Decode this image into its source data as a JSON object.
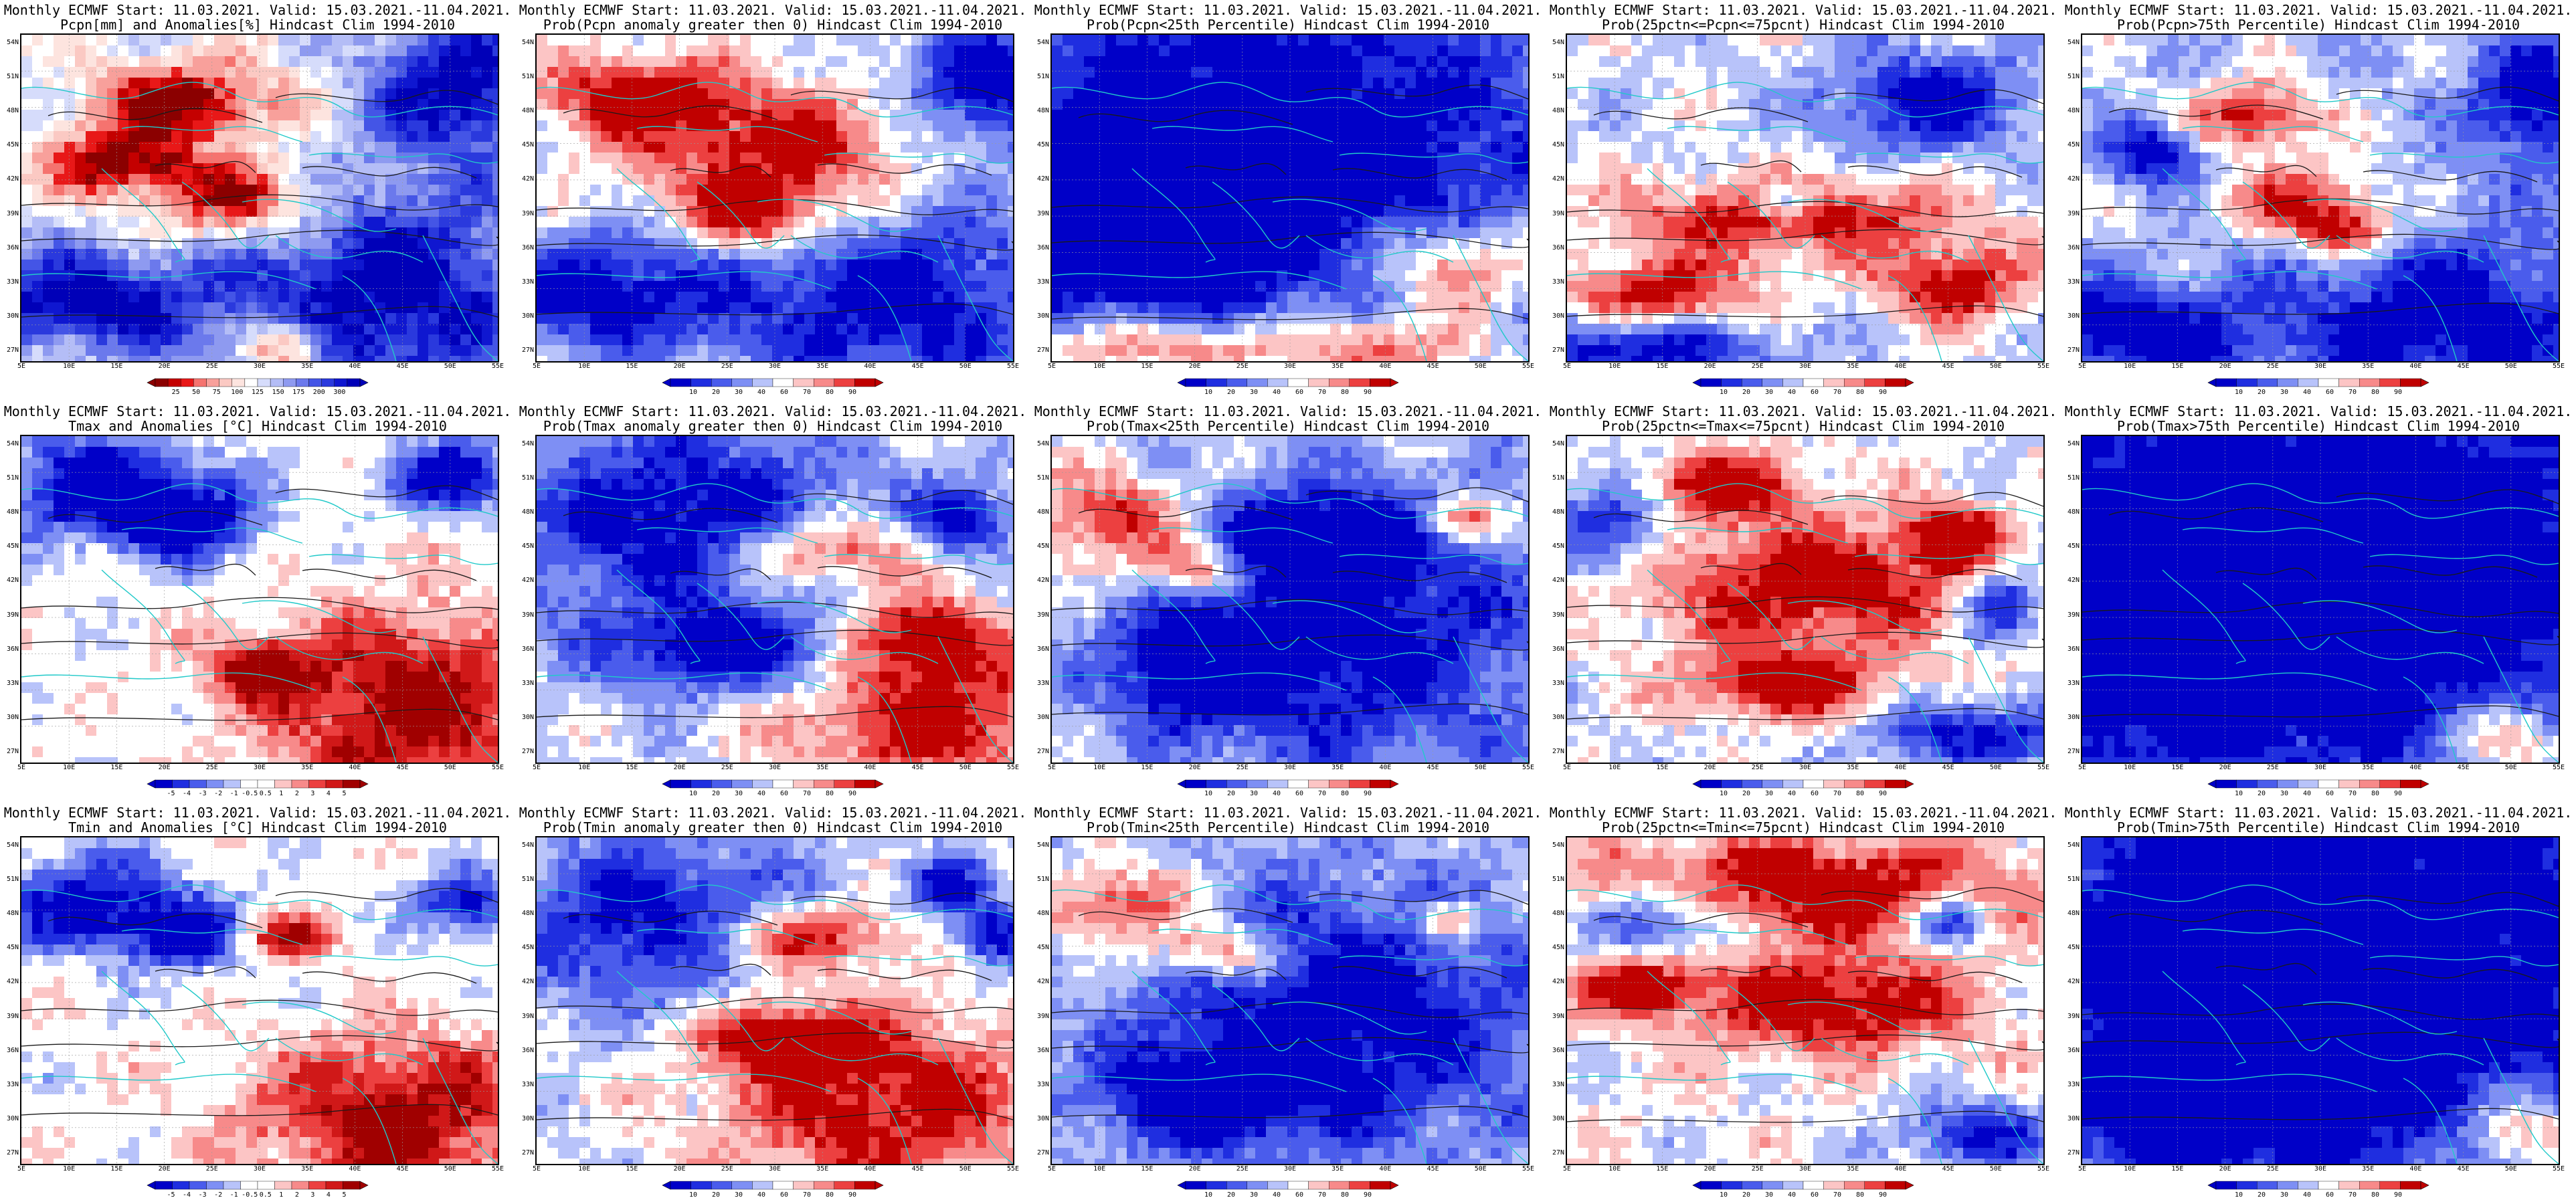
{
  "figure": {
    "lat_labels": [
      "54N",
      "51N",
      "48N",
      "45N",
      "42N",
      "39N",
      "36N",
      "33N",
      "30N",
      "27N"
    ],
    "lon_labels": [
      "5E",
      "10E",
      "15E",
      "20E",
      "25E",
      "30E",
      "35E",
      "40E",
      "45E",
      "50E",
      "55E"
    ],
    "colors": {
      "anom_precip": [
        "#8b0000",
        "#c40000",
        "#e81818",
        "#f5736f",
        "#f8a09b",
        "#fbc9c3",
        "#fde4df",
        "#ffffff",
        "#d6dcfb",
        "#b4bdf6",
        "#8e9af0",
        "#6b79ec",
        "#4455e6",
        "#2a39dd",
        "#0f17d0",
        "#0000b8"
      ],
      "prob": [
        "#0000c8",
        "#1f2ee0",
        "#4a5cec",
        "#7e8ff4",
        "#b8c3fa",
        "#ffffff",
        "#fcc5c5",
        "#f78a8a",
        "#ec4040",
        "#c00000"
      ],
      "anom_temp": [
        "#0000c8",
        "#1f2ee0",
        "#4a5cec",
        "#7e8ff4",
        "#b8c3fa",
        "#ffffff",
        "#ffffff",
        "#fcc5c5",
        "#f78a8a",
        "#ec4040",
        "#d01818",
        "#a00000"
      ],
      "contour": "#1a1a1a",
      "coast": "#21c9c9"
    }
  },
  "panels": [
    {
      "line1": "Monthly ECMWF Start: 11.03.2021. Valid: 15.03.2021.-11.04.2021.",
      "line2": "Pcpn[mm] and Anomalies[%] Hindcast Clim 1994-2010",
      "scale": "anom_precip",
      "cbar_labels": [
        "25",
        "50",
        "75",
        "100",
        "125",
        "150",
        "175",
        "200",
        "300"
      ],
      "hot": [
        [
          0.45,
          0.5,
          0.18,
          0.12
        ],
        [
          0.55,
          0.95,
          0.08,
          0.1
        ],
        [
          0.35,
          0.2,
          0.2,
          0.12
        ],
        [
          0.2,
          0.38,
          0.15,
          0.1
        ]
      ],
      "cold": [
        [
          0.75,
          0.78,
          0.35,
          0.35
        ],
        [
          0.12,
          0.8,
          0.25,
          0.15
        ],
        [
          0.92,
          0.15,
          0.2,
          0.2
        ]
      ],
      "bias": 0
    },
    {
      "line1": "Monthly ECMWF Start: 11.03.2021. Valid: 15.03.2021.-11.04.2021.",
      "line2": "Prob(Pcpn anomaly greater then 0) Hindcast Clim 1994-2010",
      "scale": "prob",
      "cbar_labels": [
        "10",
        "20",
        "30",
        "40",
        "60",
        "70",
        "80",
        "90"
      ],
      "hot": [
        [
          0.5,
          0.35,
          0.3,
          0.2
        ],
        [
          0.2,
          0.18,
          0.18,
          0.12
        ],
        [
          0.45,
          0.55,
          0.15,
          0.1
        ]
      ],
      "cold": [
        [
          0.75,
          0.8,
          0.35,
          0.3
        ],
        [
          0.15,
          0.78,
          0.25,
          0.18
        ],
        [
          0.95,
          0.15,
          0.2,
          0.2
        ]
      ],
      "bias": 0
    },
    {
      "line1": "Monthly ECMWF Start: 11.03.2021. Valid: 15.03.2021.-11.04.2021.",
      "line2": "Prob(Pcpn<25th Percentile) Hindcast Clim 1994-2010",
      "scale": "prob",
      "cbar_labels": [
        "10",
        "20",
        "30",
        "40",
        "60",
        "70",
        "80",
        "90"
      ],
      "hot": [
        [
          0.2,
          0.95,
          0.3,
          0.1
        ],
        [
          0.7,
          0.95,
          0.25,
          0.1
        ],
        [
          0.85,
          0.7,
          0.2,
          0.15
        ]
      ],
      "cold": [
        [
          0.4,
          0.35,
          0.5,
          0.4
        ],
        [
          0.2,
          0.6,
          0.25,
          0.2
        ]
      ],
      "bias": -0.5
    },
    {
      "line1": "Monthly ECMWF Start: 11.03.2021. Valid: 15.03.2021.-11.04.2021.",
      "line2": "Prob(25pctn<=Pcpn<=75pcnt) Hindcast Clim 1994-2010",
      "scale": "prob",
      "cbar_labels": [
        "10",
        "20",
        "30",
        "40",
        "60",
        "70",
        "80",
        "90"
      ],
      "hot": [
        [
          0.45,
          0.55,
          0.35,
          0.12
        ],
        [
          0.2,
          0.78,
          0.2,
          0.1
        ],
        [
          0.8,
          0.75,
          0.15,
          0.12
        ]
      ],
      "cold": [
        [
          0.15,
          0.95,
          0.3,
          0.1
        ],
        [
          0.75,
          0.2,
          0.2,
          0.15
        ],
        [
          0.45,
          0.5,
          0.06,
          0.06
        ]
      ],
      "bias": 0
    },
    {
      "line1": "Monthly ECMWF Start: 11.03.2021. Valid: 15.03.2021.-11.04.2021.",
      "line2": "Prob(Pcpn>75th Percentile) Hindcast Clim 1994-2010",
      "scale": "prob",
      "cbar_labels": [
        "10",
        "20",
        "30",
        "40",
        "60",
        "70",
        "80",
        "90"
      ],
      "hot": [
        [
          0.45,
          0.5,
          0.15,
          0.1
        ],
        [
          0.35,
          0.25,
          0.15,
          0.1
        ],
        [
          0.55,
          0.6,
          0.1,
          0.08
        ]
      ],
      "cold": [
        [
          0.75,
          0.85,
          0.35,
          0.25
        ],
        [
          0.1,
          0.9,
          0.25,
          0.15
        ],
        [
          0.95,
          0.2,
          0.15,
          0.2
        ],
        [
          0.15,
          0.35,
          0.1,
          0.1
        ]
      ],
      "bias": -0.1
    },
    {
      "line1": "Monthly ECMWF Start: 11.03.2021. Valid: 15.03.2021.-11.04.2021.",
      "line2": "Tmax and Anomalies [°C] Hindcast Clim 1994-2010",
      "scale": "anom_temp",
      "cbar_labels": [
        "-5",
        "-4",
        "-3",
        "-2",
        "-1",
        "-0.5",
        "0.5",
        "1",
        "2",
        "3",
        "4",
        "5"
      ],
      "hot": [
        [
          0.8,
          0.82,
          0.3,
          0.3
        ],
        [
          0.5,
          0.7,
          0.1,
          0.08
        ]
      ],
      "cold": [
        [
          0.15,
          0.15,
          0.22,
          0.18
        ],
        [
          0.35,
          0.25,
          0.15,
          0.12
        ],
        [
          0.9,
          0.12,
          0.15,
          0.12
        ]
      ],
      "bias": 0
    },
    {
      "line1": "Monthly ECMWF Start: 11.03.2021. Valid: 15.03.2021.-11.04.2021.",
      "line2": "Prob(Tmax anomaly greater then 0) Hindcast Clim 1994-2010",
      "scale": "prob",
      "cbar_labels": [
        "10",
        "20",
        "30",
        "40",
        "60",
        "70",
        "80",
        "90"
      ],
      "hot": [
        [
          0.82,
          0.85,
          0.3,
          0.25
        ],
        [
          0.6,
          0.35,
          0.2,
          0.1
        ],
        [
          0.8,
          0.6,
          0.15,
          0.12
        ]
      ],
      "cold": [
        [
          0.3,
          0.25,
          0.35,
          0.3
        ],
        [
          0.4,
          0.65,
          0.25,
          0.12
        ],
        [
          0.88,
          0.25,
          0.1,
          0.1
        ]
      ],
      "bias": -0.05
    },
    {
      "line1": "Monthly ECMWF Start: 11.03.2021. Valid: 15.03.2021.-11.04.2021.",
      "line2": "Prob(Tmax<25th Percentile) Hindcast Clim 1994-2010",
      "scale": "prob",
      "cbar_labels": [
        "10",
        "20",
        "30",
        "40",
        "60",
        "70",
        "80",
        "90"
      ],
      "hot": [
        [
          0.12,
          0.25,
          0.18,
          0.15
        ],
        [
          0.85,
          0.25,
          0.08,
          0.06
        ],
        [
          0.3,
          0.4,
          0.1,
          0.08
        ]
      ],
      "cold": [
        [
          0.6,
          0.6,
          0.4,
          0.4
        ],
        [
          0.3,
          0.7,
          0.15,
          0.15
        ],
        [
          0.55,
          0.3,
          0.2,
          0.12
        ]
      ],
      "bias": -0.1
    },
    {
      "line1": "Monthly ECMWF Start: 11.03.2021. Valid: 15.03.2021.-11.04.2021.",
      "line2": "Prob(25pctn<=Tmax<=75pcnt) Hindcast Clim 1994-2010",
      "scale": "prob",
      "cbar_labels": [
        "10",
        "20",
        "30",
        "40",
        "60",
        "70",
        "80",
        "90"
      ],
      "hot": [
        [
          0.5,
          0.45,
          0.35,
          0.2
        ],
        [
          0.3,
          0.15,
          0.2,
          0.1
        ],
        [
          0.8,
          0.3,
          0.1,
          0.1
        ],
        [
          0.45,
          0.75,
          0.2,
          0.1
        ]
      ],
      "cold": [
        [
          0.1,
          0.25,
          0.12,
          0.15
        ],
        [
          0.85,
          0.9,
          0.2,
          0.1
        ],
        [
          0.9,
          0.5,
          0.08,
          0.1
        ]
      ],
      "bias": 0.05
    },
    {
      "line1": "Monthly ECMWF Start: 11.03.2021. Valid: 15.03.2021.-11.04.2021.",
      "line2": "Prob(Tmax>75th Percentile) Hindcast Clim 1994-2010",
      "scale": "prob",
      "cbar_labels": [
        "10",
        "20",
        "30",
        "40",
        "60",
        "70",
        "80",
        "90"
      ],
      "hot": [
        [
          0.9,
          0.92,
          0.15,
          0.12
        ]
      ],
      "cold": [
        [
          0.5,
          0.4,
          0.6,
          0.5
        ],
        [
          0.2,
          0.7,
          0.2,
          0.2
        ]
      ],
      "bias": -0.6
    },
    {
      "line1": "Monthly ECMWF Start: 11.03.2021. Valid: 15.03.2021.-11.04.2021.",
      "line2": "Tmin and Anomalies [°C] Hindcast Clim 1994-2010",
      "scale": "anom_temp",
      "cbar_labels": [
        "-5",
        "-4",
        "-3",
        "-2",
        "-1",
        "-0.5",
        "0.5",
        "1",
        "2",
        "3",
        "4",
        "5"
      ],
      "hot": [
        [
          0.78,
          0.85,
          0.3,
          0.25
        ],
        [
          0.55,
          0.3,
          0.1,
          0.06
        ]
      ],
      "cold": [
        [
          0.15,
          0.2,
          0.2,
          0.15
        ],
        [
          0.35,
          0.3,
          0.12,
          0.1
        ],
        [
          0.92,
          0.2,
          0.1,
          0.1
        ]
      ],
      "bias": 0
    },
    {
      "line1": "Monthly ECMWF Start: 11.03.2021. Valid: 15.03.2021.-11.04.2021.",
      "line2": "Prob(Tmin anomaly greater then 0) Hindcast Clim 1994-2010",
      "scale": "prob",
      "cbar_labels": [
        "10",
        "20",
        "30",
        "40",
        "60",
        "70",
        "80",
        "90"
      ],
      "hot": [
        [
          0.72,
          0.8,
          0.35,
          0.3
        ],
        [
          0.55,
          0.3,
          0.2,
          0.1
        ],
        [
          0.5,
          0.6,
          0.15,
          0.1
        ]
      ],
      "cold": [
        [
          0.25,
          0.25,
          0.3,
          0.25
        ],
        [
          0.95,
          0.3,
          0.08,
          0.1
        ],
        [
          0.85,
          0.15,
          0.08,
          0.08
        ]
      ],
      "bias": 0
    },
    {
      "line1": "Monthly ECMWF Start: 11.03.2021. Valid: 15.03.2021.-11.04.2021.",
      "line2": "Prob(Tmin<25th Percentile) Hindcast Clim 1994-2010",
      "scale": "prob",
      "cbar_labels": [
        "10",
        "20",
        "30",
        "40",
        "60",
        "70",
        "80",
        "90"
      ],
      "hot": [
        [
          0.15,
          0.2,
          0.15,
          0.12
        ],
        [
          0.82,
          0.25,
          0.06,
          0.06
        ],
        [
          0.35,
          0.35,
          0.12,
          0.08
        ]
      ],
      "cold": [
        [
          0.6,
          0.55,
          0.4,
          0.4
        ],
        [
          0.3,
          0.78,
          0.2,
          0.15
        ]
      ],
      "bias": -0.1
    },
    {
      "line1": "Monthly ECMWF Start: 11.03.2021. Valid: 15.03.2021.-11.04.2021.",
      "line2": "Prob(25pctn<=Tmin<=75pcnt) Hindcast Clim 1994-2010",
      "scale": "prob",
      "cbar_labels": [
        "10",
        "20",
        "30",
        "40",
        "60",
        "70",
        "80",
        "90"
      ],
      "hot": [
        [
          0.5,
          0.15,
          0.45,
          0.15
        ],
        [
          0.55,
          0.5,
          0.3,
          0.15
        ],
        [
          0.15,
          0.45,
          0.12,
          0.08
        ]
      ],
      "cold": [
        [
          0.2,
          0.25,
          0.15,
          0.1
        ],
        [
          0.8,
          0.25,
          0.08,
          0.08
        ],
        [
          0.85,
          0.9,
          0.15,
          0.1
        ]
      ],
      "bias": 0.1
    },
    {
      "line1": "Monthly ECMWF Start: 11.03.2021. Valid: 15.03.2021.-11.04.2021.",
      "line2": "Prob(Tmin>75th Percentile) Hindcast Clim 1994-2010",
      "scale": "prob",
      "cbar_labels": [
        "10",
        "20",
        "30",
        "40",
        "60",
        "70",
        "80",
        "90"
      ],
      "hot": [
        [
          0.92,
          0.9,
          0.12,
          0.12
        ]
      ],
      "cold": [
        [
          0.5,
          0.35,
          0.6,
          0.5
        ],
        [
          0.3,
          0.75,
          0.25,
          0.2
        ]
      ],
      "bias": -0.55
    }
  ]
}
